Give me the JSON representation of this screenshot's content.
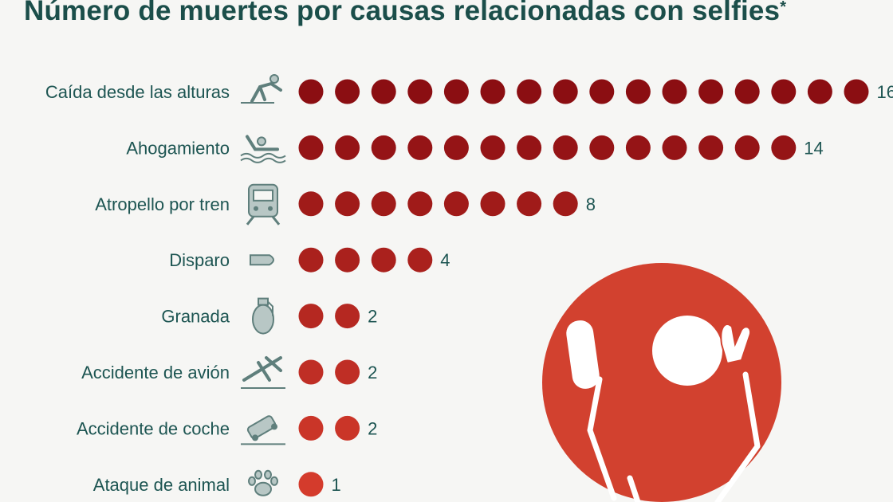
{
  "title": "Número de muertes por causas relacionadas con selfies",
  "title_mark": "*",
  "colors": {
    "title": "#1b4e4a",
    "label": "#1d5552",
    "dot_dark": "#8b0e12",
    "dot_light": "#d43b2c",
    "badge": "#d2412f"
  },
  "chart_data": {
    "type": "bar",
    "style": "pictogram-dots",
    "title": "Número de muertes por causas relacionadas con selfies",
    "categories": [
      "Caída desde las alturas",
      "Ahogamiento",
      "Atropello por tren",
      "Disparo",
      "Granada",
      "Accidente de avión",
      "Accidente de coche",
      "Ataque de animal"
    ],
    "values": [
      16,
      14,
      8,
      4,
      2,
      2,
      2,
      1
    ],
    "icons": [
      "falling-person-icon",
      "drowning-swimmer-icon",
      "train-icon",
      "bullet-icon",
      "grenade-icon",
      "plane-crash-icon",
      "car-crash-icon",
      "paw-icon"
    ]
  }
}
